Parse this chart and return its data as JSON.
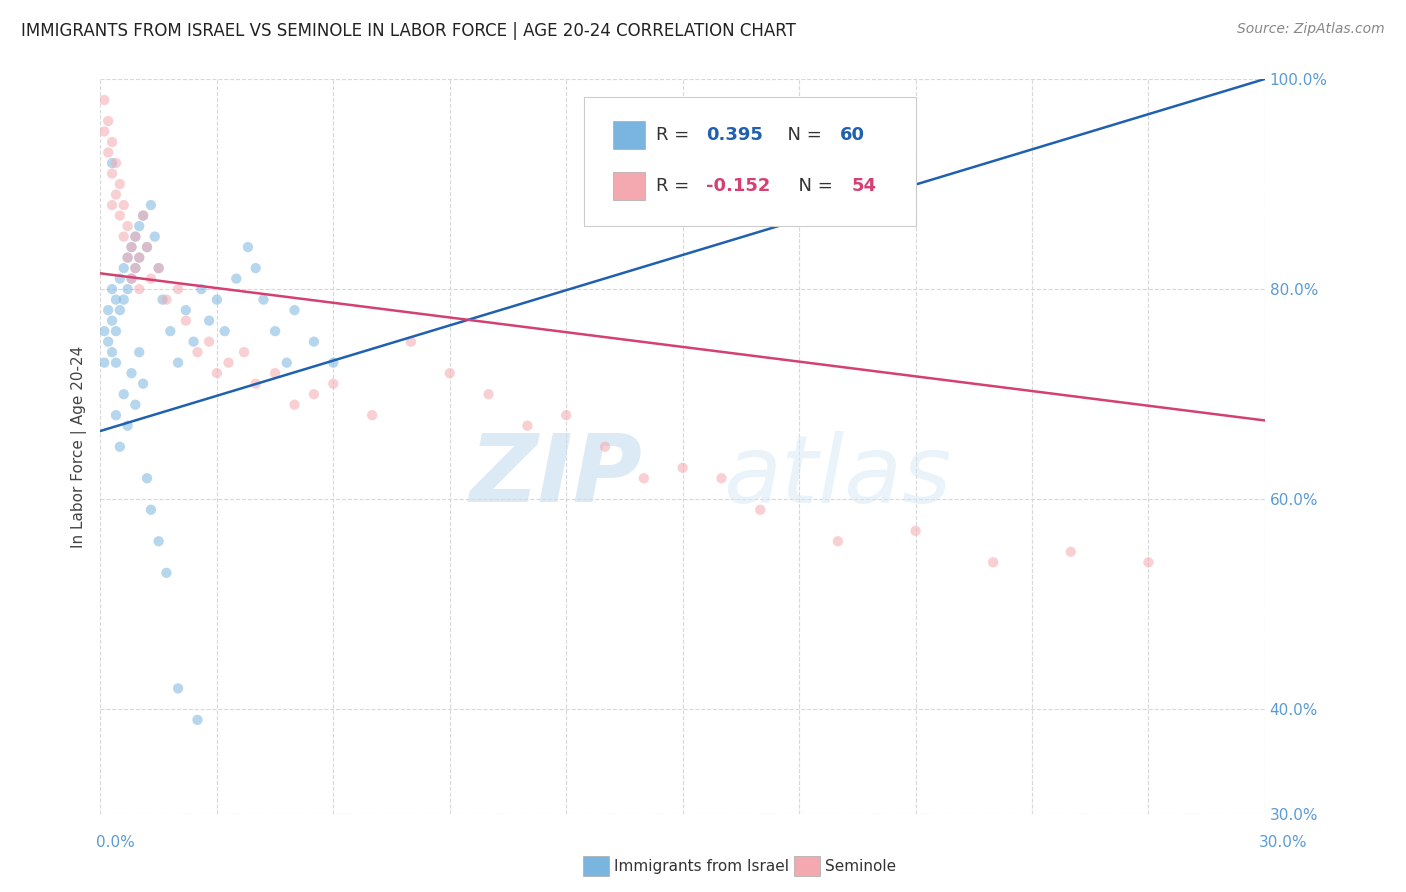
{
  "title": "IMMIGRANTS FROM ISRAEL VS SEMINOLE IN LABOR FORCE | AGE 20-24 CORRELATION CHART",
  "source": "Source: ZipAtlas.com",
  "ylabel": "In Labor Force | Age 20-24",
  "xmin": 0.0,
  "xmax": 0.3,
  "ymin": 0.3,
  "ymax": 1.0,
  "right_yticks": [
    1.0,
    0.8,
    0.6,
    0.4,
    0.3
  ],
  "right_yticklabels": [
    "100.0%",
    "80.0%",
    "60.0%",
    "40.0%",
    "30.0%"
  ],
  "blue_scatter_x": [
    0.001,
    0.001,
    0.002,
    0.002,
    0.003,
    0.003,
    0.003,
    0.004,
    0.004,
    0.004,
    0.005,
    0.005,
    0.006,
    0.006,
    0.007,
    0.007,
    0.008,
    0.008,
    0.009,
    0.009,
    0.01,
    0.01,
    0.011,
    0.012,
    0.013,
    0.014,
    0.015,
    0.016,
    0.018,
    0.02,
    0.022,
    0.024,
    0.026,
    0.028,
    0.03,
    0.032,
    0.035,
    0.038,
    0.04,
    0.042,
    0.045,
    0.048,
    0.05,
    0.055,
    0.06,
    0.003,
    0.004,
    0.005,
    0.006,
    0.007,
    0.008,
    0.009,
    0.01,
    0.011,
    0.012,
    0.013,
    0.015,
    0.017,
    0.02,
    0.025
  ],
  "blue_scatter_y": [
    0.76,
    0.73,
    0.78,
    0.75,
    0.8,
    0.77,
    0.74,
    0.79,
    0.76,
    0.73,
    0.81,
    0.78,
    0.82,
    0.79,
    0.83,
    0.8,
    0.84,
    0.81,
    0.85,
    0.82,
    0.86,
    0.83,
    0.87,
    0.84,
    0.88,
    0.85,
    0.82,
    0.79,
    0.76,
    0.73,
    0.78,
    0.75,
    0.8,
    0.77,
    0.79,
    0.76,
    0.81,
    0.84,
    0.82,
    0.79,
    0.76,
    0.73,
    0.78,
    0.75,
    0.73,
    0.92,
    0.68,
    0.65,
    0.7,
    0.67,
    0.72,
    0.69,
    0.74,
    0.71,
    0.62,
    0.59,
    0.56,
    0.53,
    0.42,
    0.39
  ],
  "pink_scatter_x": [
    0.001,
    0.001,
    0.002,
    0.002,
    0.003,
    0.003,
    0.004,
    0.004,
    0.005,
    0.005,
    0.006,
    0.006,
    0.007,
    0.007,
    0.008,
    0.008,
    0.009,
    0.009,
    0.01,
    0.01,
    0.011,
    0.012,
    0.013,
    0.015,
    0.017,
    0.02,
    0.022,
    0.025,
    0.028,
    0.03,
    0.033,
    0.037,
    0.04,
    0.045,
    0.05,
    0.055,
    0.06,
    0.07,
    0.08,
    0.09,
    0.1,
    0.11,
    0.12,
    0.13,
    0.14,
    0.15,
    0.16,
    0.17,
    0.19,
    0.21,
    0.23,
    0.25,
    0.27,
    0.003
  ],
  "pink_scatter_y": [
    0.98,
    0.95,
    0.96,
    0.93,
    0.94,
    0.91,
    0.92,
    0.89,
    0.9,
    0.87,
    0.88,
    0.85,
    0.86,
    0.83,
    0.84,
    0.81,
    0.85,
    0.82,
    0.83,
    0.8,
    0.87,
    0.84,
    0.81,
    0.82,
    0.79,
    0.8,
    0.77,
    0.74,
    0.75,
    0.72,
    0.73,
    0.74,
    0.71,
    0.72,
    0.69,
    0.7,
    0.71,
    0.68,
    0.75,
    0.72,
    0.7,
    0.67,
    0.68,
    0.65,
    0.62,
    0.63,
    0.62,
    0.59,
    0.56,
    0.57,
    0.54,
    0.55,
    0.54,
    0.88
  ],
  "blue_line_x0": 0.0,
  "blue_line_x1": 0.3,
  "blue_line_y0": 0.665,
  "blue_line_y1": 1.0,
  "pink_line_x0": 0.0,
  "pink_line_x1": 0.3,
  "pink_line_y0": 0.815,
  "pink_line_y1": 0.675,
  "scatter_size": 55,
  "scatter_alpha": 0.55,
  "blue_color": "#7ab5e0",
  "pink_color": "#f4a9b0",
  "blue_line_color": "#2060b0",
  "pink_line_color": "#d44070",
  "grid_color": "#d8d8d8",
  "grid_linestyle": "--",
  "background_color": "#ffffff",
  "watermark_zip": "ZIP",
  "watermark_atlas": "atlas",
  "legend_R1": "0.395",
  "legend_N1": "60",
  "legend_R2": "-0.152",
  "legend_N2": "54",
  "bottom_label1": "Immigrants from Israel",
  "bottom_label2": "Seminole"
}
